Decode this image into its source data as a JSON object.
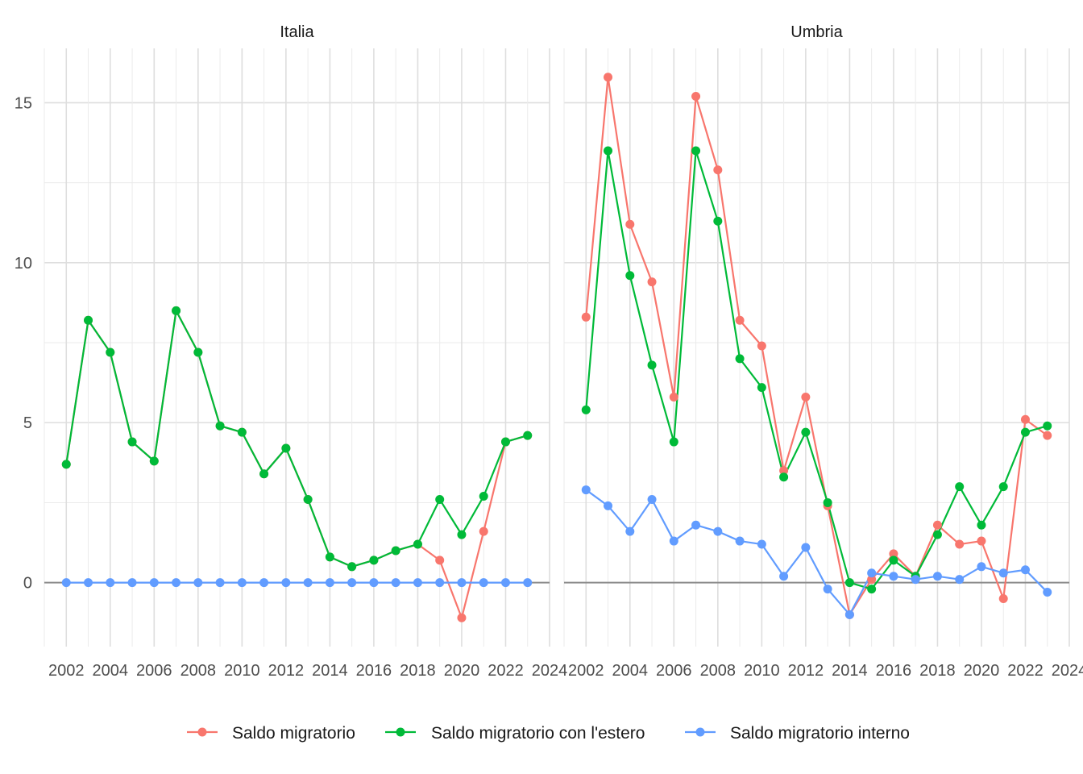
{
  "chart_data": {
    "type": "line",
    "facets": [
      "Italia",
      "Umbria"
    ],
    "x": [
      2002,
      2003,
      2004,
      2005,
      2006,
      2007,
      2008,
      2009,
      2010,
      2011,
      2012,
      2013,
      2014,
      2015,
      2016,
      2017,
      2018,
      2019,
      2020,
      2021,
      2022,
      2023
    ],
    "xlim": [
      2001,
      2024
    ],
    "ylim": [
      -2,
      16.7
    ],
    "x_ticks": [
      2002,
      2004,
      2006,
      2008,
      2010,
      2012,
      2014,
      2016,
      2018,
      2020,
      2022,
      2024
    ],
    "y_ticks": [
      0,
      5,
      10,
      15
    ],
    "legend_position": "bottom",
    "grid": true,
    "series": [
      {
        "name": "Saldo migratorio",
        "color": "#F8766D",
        "values": {
          "Italia": [
            3.7,
            8.2,
            7.2,
            4.4,
            3.8,
            8.5,
            7.2,
            4.9,
            4.7,
            3.4,
            4.2,
            2.6,
            0.8,
            0.5,
            0.7,
            1.0,
            1.2,
            0.7,
            -1.1,
            1.6,
            4.4,
            4.6
          ],
          "Umbria": [
            8.3,
            15.8,
            11.2,
            9.4,
            5.8,
            15.2,
            12.9,
            8.2,
            7.4,
            3.5,
            5.8,
            2.4,
            -1.0,
            0.1,
            0.9,
            0.2,
            1.8,
            1.2,
            1.3,
            -0.5,
            5.1,
            4.6
          ]
        }
      },
      {
        "name": "Saldo migratorio con l'estero",
        "color": "#00BA38",
        "values": {
          "Italia": [
            3.7,
            8.2,
            7.2,
            4.4,
            3.8,
            8.5,
            7.2,
            4.9,
            4.7,
            3.4,
            4.2,
            2.6,
            0.8,
            0.5,
            0.7,
            1.0,
            1.2,
            2.6,
            1.5,
            2.7,
            4.4,
            4.6
          ],
          "Umbria": [
            5.4,
            13.5,
            9.6,
            6.8,
            4.4,
            13.5,
            11.3,
            7.0,
            6.1,
            3.3,
            4.7,
            2.5,
            0.0,
            -0.2,
            0.7,
            0.2,
            1.5,
            3.0,
            1.8,
            3.0,
            4.7,
            4.9
          ]
        }
      },
      {
        "name": "Saldo migratorio interno",
        "color": "#619CFF",
        "values": {
          "Italia": [
            0,
            0,
            0,
            0,
            0,
            0,
            0,
            0,
            0,
            0,
            0,
            0,
            0,
            0,
            0,
            0,
            0,
            0,
            0,
            0,
            0,
            0
          ],
          "Umbria": [
            2.9,
            2.4,
            1.6,
            2.6,
            1.3,
            1.8,
            1.6,
            1.3,
            1.2,
            0.2,
            1.1,
            -0.2,
            -1.0,
            0.3,
            0.2,
            0.1,
            0.2,
            0.1,
            0.5,
            0.3,
            0.4,
            -0.3
          ]
        }
      }
    ]
  }
}
